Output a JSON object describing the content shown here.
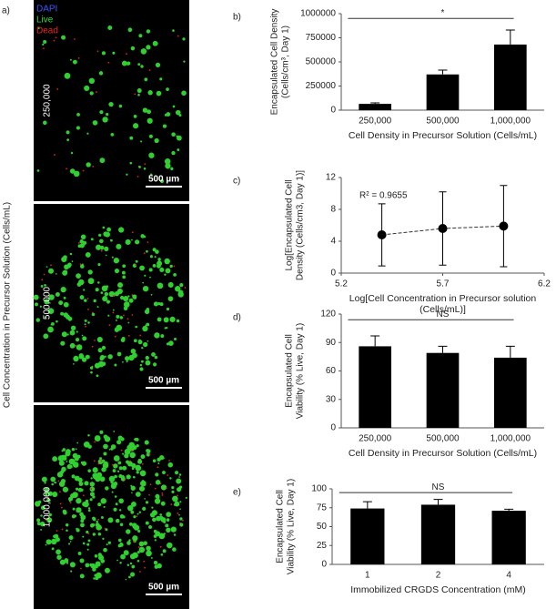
{
  "panel_a": {
    "panel_label": "a)",
    "legend": [
      {
        "name": "DAPI",
        "color": "#3a5bff"
      },
      {
        "name": "Live",
        "color": "#33dd33"
      },
      {
        "name": "Dead",
        "color": "#ee2222"
      }
    ],
    "side_label": "Cell Concentration in Precursor Solution (Cells/mL)",
    "rows": [
      {
        "label": "250,000",
        "scale_bar": "500 µm"
      },
      {
        "label": "500,000",
        "scale_bar": "500 µm"
      },
      {
        "label": "1,000,000",
        "scale_bar": "500 µm"
      }
    ]
  },
  "chart_data": [
    {
      "type": "bar",
      "panel_label": "b)",
      "categories": [
        "250,000",
        "500,000",
        "1,000,000"
      ],
      "values": [
        65000,
        370000,
        680000
      ],
      "errors": [
        10000,
        45000,
        150000
      ],
      "color": "#000000",
      "ylim": [
        0,
        1000000
      ],
      "yticks": [
        0,
        250000,
        500000,
        750000,
        1000000
      ],
      "ylabel": [
        "Encapsulated Cell Density",
        "(Cells/cm³, Day 1)"
      ],
      "xlabel": [
        "Cell Density in Precursor Solution (Cells/mL)"
      ],
      "annotation": "*"
    },
    {
      "type": "scatter",
      "panel_label": "c)",
      "x": [
        5.4,
        5.7,
        6.0
      ],
      "y": [
        4.8,
        5.6,
        5.9
      ],
      "errors": [
        3.9,
        4.6,
        5.1
      ],
      "color": "#000000",
      "trendline": true,
      "xlim": [
        5.2,
        6.2
      ],
      "xticks": [
        5.2,
        5.7,
        6.2
      ],
      "ylim": [
        0,
        12
      ],
      "yticks": [
        0,
        4,
        8,
        12
      ],
      "ylabel": [
        "Log[Encapsulated Cell",
        "Density (Cells/cm3, Day 1)]"
      ],
      "xlabel": [
        "Log[Cell Concentration  in Precursor solution",
        "(Cells/mL)]"
      ],
      "annotation": "R² = 0.9655"
    },
    {
      "type": "bar",
      "panel_label": "d)",
      "categories": [
        "250,000",
        "500,000",
        "1,000,000"
      ],
      "values": [
        86,
        79,
        74
      ],
      "errors": [
        11,
        7,
        12
      ],
      "color": "#000000",
      "ylim": [
        0,
        120
      ],
      "yticks": [
        0,
        30,
        60,
        90,
        120
      ],
      "ylabel": [
        "Encapsulated Cell",
        "Viability (% Live, Day 1)"
      ],
      "xlabel": [
        "Cell Density in Precursor Solution (Cells/mL)"
      ],
      "annotation": "NS"
    },
    {
      "type": "bar",
      "panel_label": "e)",
      "categories": [
        "1",
        "2",
        "4"
      ],
      "values": [
        74,
        79,
        71
      ],
      "errors": [
        9,
        7,
        2
      ],
      "color": "#000000",
      "ylim": [
        0,
        100
      ],
      "yticks": [
        0,
        25,
        50,
        75,
        100
      ],
      "ylabel": [
        "Encapsulated Cell",
        "Viability (% Live, Day 1)"
      ],
      "xlabel": [
        "Immobilized CRGDS Concentration (mM)"
      ],
      "annotation": "NS"
    }
  ]
}
